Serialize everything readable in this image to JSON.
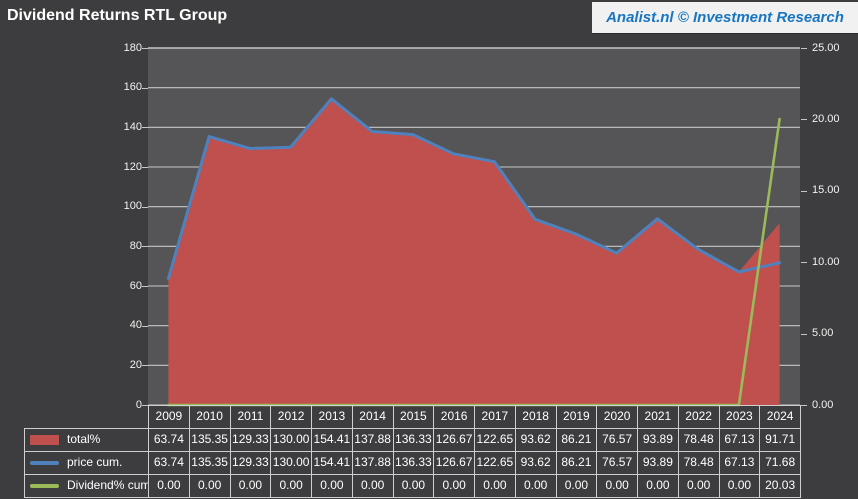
{
  "header": {
    "title": "Dividend Returns RTL Group",
    "brand": "Analist.nl © Investment Research"
  },
  "colors": {
    "page_background": "#3d3d3f",
    "plot_background": "#555557",
    "gridline": "#c6c6c6",
    "table_border": "#cfcfcf",
    "text": "#ffffff",
    "total_red": "#c0504d",
    "price_blue": "#4f81bd",
    "dividend_green": "#9bbb59",
    "brand_blue": "#1876c0",
    "banner_background": "#f1f1f1"
  },
  "chart_data": {
    "type": "area",
    "title": "Dividend Returns RTL Group",
    "categories": [
      "2009",
      "2010",
      "2011",
      "2012",
      "2013",
      "2014",
      "2015",
      "2016",
      "2017",
      "2018",
      "2019",
      "2020",
      "2021",
      "2022",
      "2023",
      "2024"
    ],
    "series": [
      {
        "name": "total%",
        "chart_type": "area",
        "axis": "left",
        "color": "#c0504d",
        "values": [
          63.74,
          135.35,
          129.33,
          130.0,
          154.41,
          137.88,
          136.33,
          126.67,
          122.65,
          93.62,
          86.21,
          76.57,
          93.89,
          78.48,
          67.13,
          91.71
        ]
      },
      {
        "name": "price cum.",
        "chart_type": "line",
        "axis": "left",
        "color": "#4f81bd",
        "values": [
          63.74,
          135.35,
          129.33,
          130.0,
          154.41,
          137.88,
          136.33,
          126.67,
          122.65,
          93.62,
          86.21,
          76.57,
          93.89,
          78.48,
          67.13,
          71.68
        ]
      },
      {
        "name": "Dividend% cum.",
        "chart_type": "line",
        "axis": "right",
        "color": "#9bbb59",
        "values": [
          0.0,
          0.0,
          0.0,
          0.0,
          0.0,
          0.0,
          0.0,
          0.0,
          0.0,
          0.0,
          0.0,
          0.0,
          0.0,
          0.0,
          0.0,
          20.03
        ]
      }
    ],
    "left_axis": {
      "min": 0,
      "max": 180,
      "step": 20,
      "tick_labels": [
        "180",
        "160",
        "140",
        "120",
        "100",
        "80",
        "60",
        "40",
        "20",
        "0"
      ]
    },
    "right_axis": {
      "min": 0,
      "max": 25,
      "step": 5,
      "tick_labels": [
        "25.00",
        "20.00",
        "15.00",
        "10.00",
        "5.00",
        "0.00"
      ]
    },
    "grid": true,
    "legend_position": "table-left",
    "value_format_decimals": 2
  }
}
